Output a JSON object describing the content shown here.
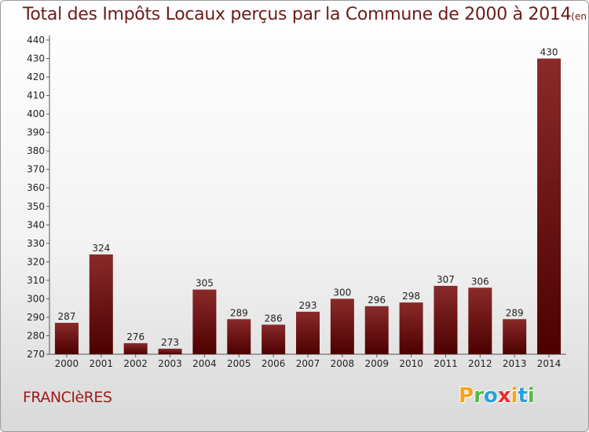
{
  "chart_data": {
    "type": "bar",
    "title": "Total des Impôts Locaux perçus par la Commune de 2000 à 2014",
    "subtitle": "(en milliers d'€)",
    "categories": [
      "2000",
      "2001",
      "2002",
      "2003",
      "2004",
      "2005",
      "2006",
      "2007",
      "2008",
      "2009",
      "2010",
      "2011",
      "2012",
      "2013",
      "2014"
    ],
    "values": [
      287,
      324,
      276,
      273,
      305,
      289,
      286,
      293,
      300,
      296,
      298,
      307,
      306,
      289,
      430
    ],
    "ylim": [
      270,
      440
    ],
    "ytick_step": 10,
    "grid": false,
    "bar_color_top": "#8a2a2a",
    "bar_color_bottom": "#4d0000"
  },
  "commune": "FRANCIèRES",
  "logo": {
    "letters": [
      "P",
      "r",
      "o",
      "x",
      "i",
      "t",
      "i"
    ],
    "colors": [
      "#f7a21b",
      "#56b947",
      "#2c9fd8",
      "#e5322d",
      "#f7a21b",
      "#2c9fd8",
      "#56b947"
    ]
  }
}
